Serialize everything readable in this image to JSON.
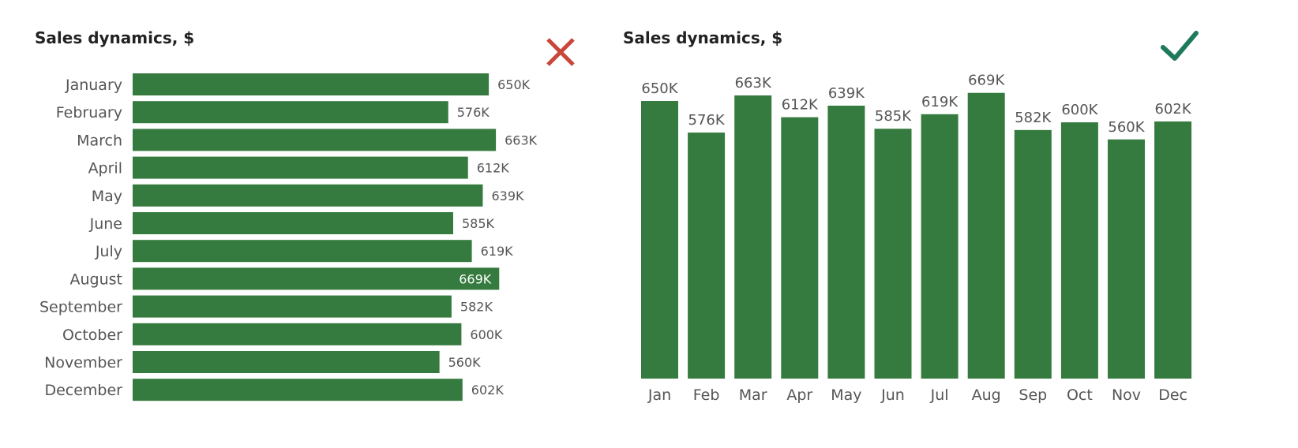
{
  "colors": {
    "bar": "#357a3e",
    "cross": "#c8463a",
    "check": "#1e7a5a",
    "highlight_label": "#ffffff"
  },
  "chart_data": [
    {
      "type": "bar",
      "orientation": "horizontal",
      "title": "Sales dynamics, $",
      "verdict_icon": "cross-icon",
      "categories": [
        "January",
        "February",
        "March",
        "April",
        "May",
        "June",
        "July",
        "August",
        "September",
        "October",
        "November",
        "December"
      ],
      "values": [
        650,
        576,
        663,
        612,
        639,
        585,
        619,
        669,
        582,
        600,
        560,
        602
      ],
      "labels": [
        "650K",
        "576K",
        "663K",
        "612K",
        "639K",
        "585K",
        "619K",
        "669K",
        "582K",
        "600K",
        "560K",
        "602K"
      ],
      "unit": "K$",
      "xlim": [
        0,
        700
      ]
    },
    {
      "type": "bar",
      "orientation": "vertical",
      "title": "Sales dynamics, $",
      "verdict_icon": "check-icon",
      "categories": [
        "Jan",
        "Feb",
        "Mar",
        "Apr",
        "May",
        "Jun",
        "Jul",
        "Aug",
        "Sep",
        "Oct",
        "Nov",
        "Dec"
      ],
      "values": [
        650,
        576,
        663,
        612,
        639,
        585,
        619,
        669,
        582,
        600,
        560,
        602
      ],
      "labels": [
        "650K",
        "576K",
        "663K",
        "612K",
        "639K",
        "585K",
        "619K",
        "669K",
        "582K",
        "600K",
        "560K",
        "602K"
      ],
      "unit": "K$",
      "ylim": [
        0,
        700
      ]
    }
  ]
}
